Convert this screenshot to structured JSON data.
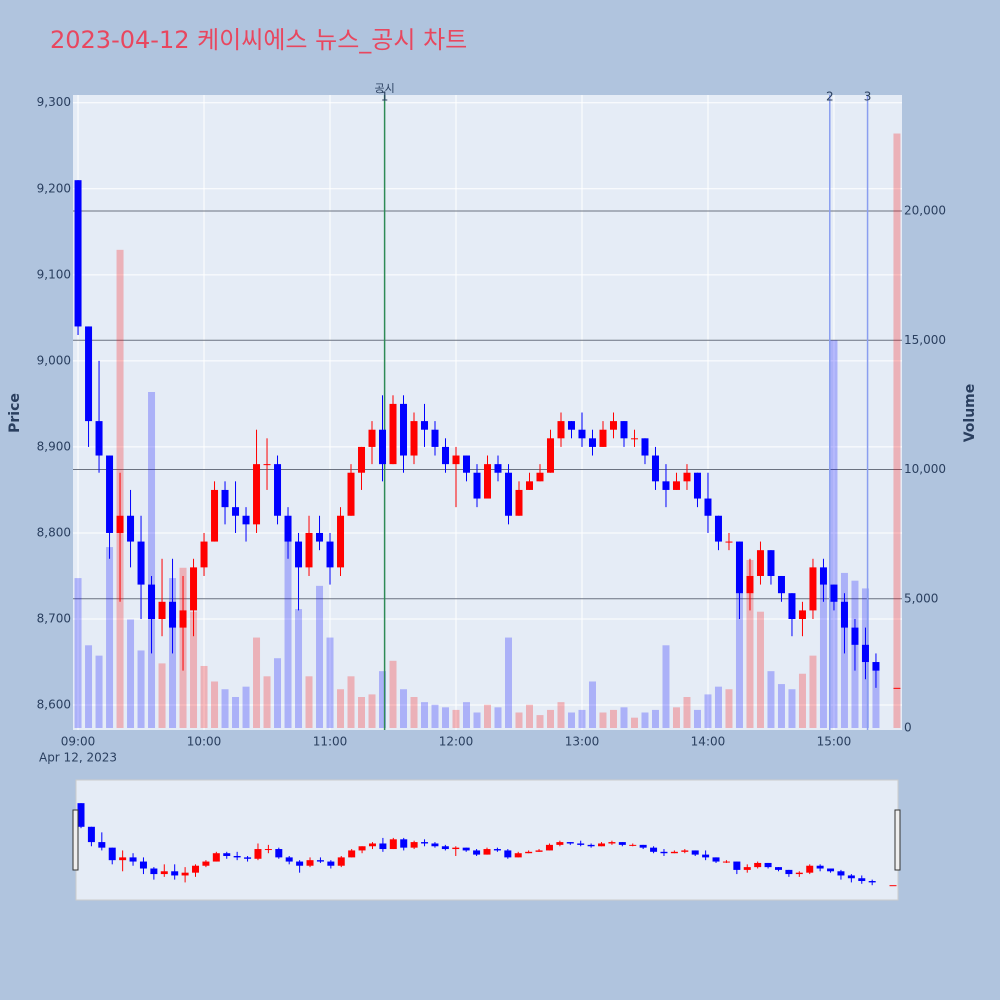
{
  "chart_data": {
    "type": "candlestick",
    "title": "2023-04-12 케이씨에스 뉴스_공시 차트",
    "y_label": "Price",
    "y2_label": "Volume",
    "x_date_label": "Apr 12, 2023",
    "increasing_color": "#ff0000",
    "decreasing_color": "#0000ff",
    "xlim": [
      "2023-04-12 08:57:36",
      "2023-04-12 15:32:24"
    ],
    "xticks": [
      {
        "value": "2023-04-12 09:00",
        "label": "09:00"
      },
      {
        "value": "2023-04-12 10:00",
        "label": "10:00"
      },
      {
        "value": "2023-04-12 11:00",
        "label": "11:00"
      },
      {
        "value": "2023-04-12 12:00",
        "label": "12:00"
      },
      {
        "value": "2023-04-12 13:00",
        "label": "13:00"
      },
      {
        "value": "2023-04-12 14:00",
        "label": "14:00"
      },
      {
        "value": "2023-04-12 15:00",
        "label": "15:00"
      }
    ],
    "ylim": [
      8571,
      9309
    ],
    "yticks": [
      {
        "value": 8600,
        "label": "8,600"
      },
      {
        "value": 8700,
        "label": "8,700"
      },
      {
        "value": 8800,
        "label": "8,800"
      },
      {
        "value": 8900,
        "label": "8,900"
      },
      {
        "value": 9000,
        "label": "9,000"
      },
      {
        "value": 9100,
        "label": "9,100"
      },
      {
        "value": 9200,
        "label": "9,200"
      },
      {
        "value": 9300,
        "label": "9,300"
      }
    ],
    "y2lim": [
      -77,
      24490
    ],
    "y2ticks": [
      0,
      {
        "value": 5000,
        "label": "5,000"
      },
      {
        "value": 10000,
        "label": "10,000"
      },
      {
        "value": 15000,
        "label": "15,000"
      },
      {
        "value": 20000,
        "label": "20,000"
      }
    ],
    "annotations": [
      {
        "x": "2023-04-12 11:26",
        "label": "공시",
        "number": "1",
        "color": "#2e8b57"
      },
      {
        "x": "2023-04-12 14:58",
        "number": "2",
        "color": "#8a9ef0"
      },
      {
        "x": "2023-04-12 15:16",
        "number": "3",
        "color": "#8a9ef0"
      }
    ],
    "x": [
      "2023-04-12 09:00",
      "2023-04-12 09:05",
      "2023-04-12 09:10",
      "2023-04-12 09:15",
      "2023-04-12 09:20",
      "2023-04-12 09:25",
      "2023-04-12 09:30",
      "2023-04-12 09:35",
      "2023-04-12 09:40",
      "2023-04-12 09:45",
      "2023-04-12 09:50",
      "2023-04-12 09:55",
      "2023-04-12 10:00",
      "2023-04-12 10:05",
      "2023-04-12 10:10",
      "2023-04-12 10:15",
      "2023-04-12 10:20",
      "2023-04-12 10:25",
      "2023-04-12 10:30",
      "2023-04-12 10:35",
      "2023-04-12 10:40",
      "2023-04-12 10:45",
      "2023-04-12 10:50",
      "2023-04-12 10:55",
      "2023-04-12 11:00",
      "2023-04-12 11:05",
      "2023-04-12 11:10",
      "2023-04-12 11:15",
      "2023-04-12 11:20",
      "2023-04-12 11:25",
      "2023-04-12 11:30",
      "2023-04-12 11:35",
      "2023-04-12 11:40",
      "2023-04-12 11:45",
      "2023-04-12 11:50",
      "2023-04-12 11:55",
      "2023-04-12 12:00",
      "2023-04-12 12:05",
      "2023-04-12 12:10",
      "2023-04-12 12:15",
      "2023-04-12 12:20",
      "2023-04-12 12:25",
      "2023-04-12 12:30",
      "2023-04-12 12:35",
      "2023-04-12 12:40",
      "2023-04-12 12:45",
      "2023-04-12 12:50",
      "2023-04-12 12:55",
      "2023-04-12 13:00",
      "2023-04-12 13:05",
      "2023-04-12 13:10",
      "2023-04-12 13:15",
      "2023-04-12 13:20",
      "2023-04-12 13:25",
      "2023-04-12 13:30",
      "2023-04-12 13:35",
      "2023-04-12 13:40",
      "2023-04-12 13:45",
      "2023-04-12 13:50",
      "2023-04-12 13:55",
      "2023-04-12 14:00",
      "2023-04-12 14:05",
      "2023-04-12 14:10",
      "2023-04-12 14:15",
      "2023-04-12 14:20",
      "2023-04-12 14:25",
      "2023-04-12 14:30",
      "2023-04-12 14:35",
      "2023-04-12 14:40",
      "2023-04-12 14:45",
      "2023-04-12 14:50",
      "2023-04-12 14:55",
      "2023-04-12 15:00",
      "2023-04-12 15:05",
      "2023-04-12 15:10",
      "2023-04-12 15:15",
      "2023-04-12 15:20",
      "2023-04-12 15:30"
    ],
    "open": [
      9210,
      9040,
      8930,
      8890,
      8800,
      8820,
      8790,
      8740,
      8700,
      8720,
      8690,
      8710,
      8760,
      8790,
      8850,
      8830,
      8820,
      8810,
      8880,
      8880,
      8820,
      8790,
      8760,
      8800,
      8790,
      8760,
      8820,
      8870,
      8900,
      8920,
      8880,
      8950,
      8890,
      8930,
      8920,
      8900,
      8880,
      8890,
      8870,
      8840,
      8880,
      8870,
      8820,
      8850,
      8860,
      8870,
      8910,
      8930,
      8920,
      8910,
      8900,
      8920,
      8930,
      8910,
      8910,
      8890,
      8860,
      8850,
      8860,
      8870,
      8840,
      8820,
      8790,
      8790,
      8730,
      8750,
      8780,
      8750,
      8730,
      8700,
      8710,
      8760,
      8740,
      8720,
      8690,
      8670,
      8650,
      8620
    ],
    "high": [
      9210,
      9040,
      9000,
      8890,
      8870,
      8850,
      8820,
      8750,
      8770,
      8770,
      8750,
      8770,
      8800,
      8860,
      8860,
      8860,
      8830,
      8920,
      8910,
      8890,
      8830,
      8800,
      8820,
      8820,
      8800,
      8830,
      8880,
      8900,
      8930,
      8960,
      8960,
      8960,
      8940,
      8950,
      8930,
      8910,
      8900,
      8890,
      8880,
      8890,
      8890,
      8880,
      8860,
      8870,
      8880,
      8920,
      8940,
      8930,
      8940,
      8920,
      8930,
      8940,
      8930,
      8920,
      8910,
      8900,
      8880,
      8870,
      8880,
      8870,
      8870,
      8820,
      8800,
      8790,
      8770,
      8790,
      8780,
      8750,
      8730,
      8720,
      8770,
      8770,
      8740,
      8730,
      8700,
      8690,
      8660,
      8620
    ],
    "low": [
      9030,
      8900,
      8870,
      8770,
      8720,
      8760,
      8700,
      8660,
      8680,
      8660,
      8640,
      8680,
      8750,
      8790,
      8810,
      8800,
      8790,
      8800,
      8850,
      8810,
      8770,
      8710,
      8750,
      8780,
      8740,
      8750,
      8820,
      8850,
      8880,
      8860,
      8880,
      8870,
      8880,
      8900,
      8890,
      8870,
      8830,
      8860,
      8830,
      8840,
      8860,
      8810,
      8820,
      8850,
      8860,
      8870,
      8900,
      8910,
      8900,
      8890,
      8900,
      8910,
      8900,
      8900,
      8880,
      8850,
      8830,
      8850,
      8850,
      8830,
      8800,
      8780,
      8780,
      8700,
      8710,
      8740,
      8740,
      8720,
      8680,
      8680,
      8700,
      8720,
      8710,
      8660,
      8640,
      8630,
      8620,
      8620
    ],
    "close": [
      9040,
      8930,
      8890,
      8800,
      8820,
      8790,
      8740,
      8700,
      8720,
      8690,
      8710,
      8760,
      8790,
      8850,
      8830,
      8820,
      8810,
      8880,
      8880,
      8820,
      8790,
      8760,
      8800,
      8790,
      8760,
      8820,
      8870,
      8900,
      8920,
      8880,
      8950,
      8890,
      8930,
      8920,
      8900,
      8880,
      8890,
      8870,
      8840,
      8880,
      8870,
      8820,
      8850,
      8860,
      8870,
      8910,
      8930,
      8920,
      8910,
      8900,
      8920,
      8930,
      8910,
      8910,
      8890,
      8860,
      8850,
      8860,
      8870,
      8840,
      8820,
      8790,
      8790,
      8730,
      8750,
      8780,
      8750,
      8730,
      8700,
      8710,
      8760,
      8740,
      8720,
      8690,
      8670,
      8650,
      8640,
      8620
    ],
    "volume": [
      5800,
      3200,
      2800,
      7000,
      18500,
      4200,
      3000,
      13000,
      2500,
      5800,
      6200,
      4500,
      2400,
      1800,
      1500,
      1200,
      1600,
      3500,
      2000,
      2700,
      7800,
      4600,
      2000,
      5500,
      3500,
      1500,
      2000,
      1200,
      1300,
      2200,
      2600,
      1500,
      1200,
      1000,
      900,
      800,
      700,
      1000,
      600,
      900,
      800,
      3500,
      600,
      900,
      500,
      700,
      1000,
      600,
      700,
      1800,
      600,
      700,
      800,
      400,
      600,
      700,
      3200,
      800,
      1200,
      700,
      1300,
      1600,
      1500,
      5600,
      6500,
      4500,
      2200,
      1700,
      1500,
      2100,
      2800,
      5600,
      15000,
      6000,
      5700,
      5400,
      2500,
      23000
    ]
  }
}
